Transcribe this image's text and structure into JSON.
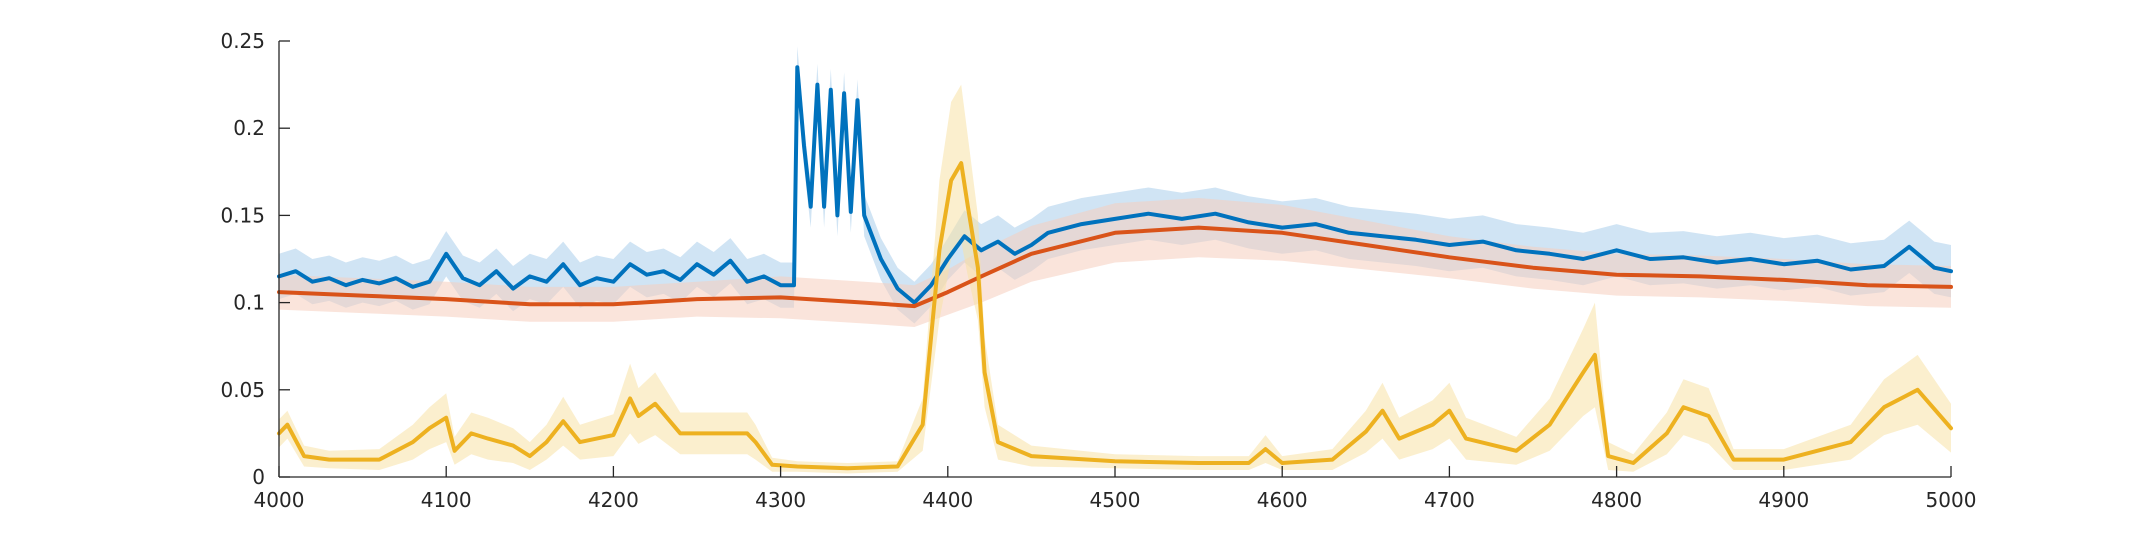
{
  "chart_data": {
    "type": "line",
    "title": "",
    "xlabel": "",
    "ylabel": "",
    "xlim": [
      4000,
      5000
    ],
    "ylim": [
      0,
      0.25
    ],
    "xticks": [
      4000,
      4100,
      4200,
      4300,
      4400,
      4500,
      4600,
      4700,
      4800,
      4900,
      5000
    ],
    "xtick_labels": [
      "4000",
      "4100",
      "4200",
      "4300",
      "4400",
      "4500",
      "4600",
      "4700",
      "4800",
      "4900",
      "5000"
    ],
    "yticks": [
      0,
      0.05,
      0.1,
      0.15,
      0.2,
      0.25
    ],
    "ytick_labels": [
      "0",
      "0.05",
      "0.1",
      "0.15",
      "0.2",
      "0.25"
    ],
    "grid": false,
    "legend": "none",
    "series": [
      {
        "color": "#0072BD",
        "band_color": "#A9CDEB",
        "x": [
          4000,
          4010,
          4020,
          4030,
          4040,
          4050,
          4060,
          4070,
          4080,
          4090,
          4100,
          4110,
          4120,
          4130,
          4140,
          4150,
          4160,
          4170,
          4180,
          4190,
          4200,
          4210,
          4220,
          4230,
          4240,
          4250,
          4260,
          4270,
          4280,
          4290,
          4300,
          4308,
          4310,
          4314,
          4318,
          4322,
          4326,
          4330,
          4334,
          4338,
          4342,
          4346,
          4350,
          4360,
          4370,
          4380,
          4390,
          4400,
          4410,
          4420,
          4430,
          4440,
          4450,
          4460,
          4480,
          4500,
          4520,
          4540,
          4560,
          4580,
          4600,
          4620,
          4640,
          4660,
          4680,
          4700,
          4720,
          4740,
          4760,
          4780,
          4800,
          4820,
          4840,
          4860,
          4880,
          4900,
          4920,
          4940,
          4960,
          4975,
          4990,
          5000
        ],
        "y": [
          0.115,
          0.118,
          0.112,
          0.114,
          0.11,
          0.113,
          0.111,
          0.114,
          0.109,
          0.112,
          0.128,
          0.114,
          0.11,
          0.118,
          0.108,
          0.115,
          0.112,
          0.122,
          0.11,
          0.114,
          0.112,
          0.122,
          0.116,
          0.118,
          0.113,
          0.122,
          0.116,
          0.124,
          0.112,
          0.115,
          0.11,
          0.11,
          0.235,
          0.19,
          0.155,
          0.225,
          0.155,
          0.222,
          0.15,
          0.22,
          0.152,
          0.216,
          0.15,
          0.125,
          0.108,
          0.1,
          0.11,
          0.125,
          0.138,
          0.13,
          0.135,
          0.128,
          0.133,
          0.14,
          0.145,
          0.148,
          0.151,
          0.148,
          0.151,
          0.146,
          0.143,
          0.145,
          0.14,
          0.138,
          0.136,
          0.133,
          0.135,
          0.13,
          0.128,
          0.125,
          0.13,
          0.125,
          0.126,
          0.123,
          0.125,
          0.122,
          0.124,
          0.119,
          0.121,
          0.132,
          0.12,
          0.118
        ],
        "band": [
          0.013,
          0.013,
          0.013,
          0.013,
          0.013,
          0.013,
          0.013,
          0.013,
          0.013,
          0.013,
          0.013,
          0.013,
          0.013,
          0.013,
          0.013,
          0.013,
          0.013,
          0.013,
          0.013,
          0.013,
          0.013,
          0.013,
          0.013,
          0.013,
          0.013,
          0.013,
          0.013,
          0.013,
          0.013,
          0.013,
          0.013,
          0.013,
          0.012,
          0.012,
          0.012,
          0.012,
          0.012,
          0.012,
          0.012,
          0.012,
          0.012,
          0.012,
          0.012,
          0.012,
          0.012,
          0.012,
          0.012,
          0.012,
          0.015,
          0.015,
          0.015,
          0.015,
          0.015,
          0.015,
          0.015,
          0.015,
          0.015,
          0.015,
          0.015,
          0.015,
          0.015,
          0.015,
          0.015,
          0.015,
          0.015,
          0.015,
          0.015,
          0.015,
          0.015,
          0.015,
          0.015,
          0.015,
          0.015,
          0.015,
          0.015,
          0.015,
          0.015,
          0.015,
          0.015,
          0.015,
          0.015,
          0.015
        ]
      },
      {
        "color": "#D95319",
        "band_color": "#F6CDBD",
        "x": [
          4000,
          4050,
          4100,
          4150,
          4200,
          4250,
          4300,
          4350,
          4380,
          4400,
          4420,
          4450,
          4500,
          4550,
          4600,
          4650,
          4700,
          4750,
          4800,
          4850,
          4900,
          4950,
          5000
        ],
        "y": [
          0.106,
          0.104,
          0.102,
          0.099,
          0.099,
          0.102,
          0.103,
          0.1,
          0.098,
          0.106,
          0.115,
          0.128,
          0.14,
          0.143,
          0.14,
          0.133,
          0.126,
          0.12,
          0.116,
          0.115,
          0.113,
          0.11,
          0.109
        ],
        "band": [
          0.01,
          0.01,
          0.01,
          0.01,
          0.01,
          0.01,
          0.012,
          0.012,
          0.012,
          0.013,
          0.015,
          0.016,
          0.017,
          0.017,
          0.016,
          0.014,
          0.012,
          0.012,
          0.012,
          0.012,
          0.012,
          0.012,
          0.012
        ]
      },
      {
        "color": "#EDB120",
        "band_color": "#F8E1A6",
        "x": [
          4000,
          4005,
          4015,
          4030,
          4060,
          4080,
          4090,
          4100,
          4105,
          4115,
          4125,
          4140,
          4150,
          4160,
          4170,
          4180,
          4200,
          4210,
          4215,
          4225,
          4240,
          4260,
          4280,
          4285,
          4295,
          4310,
          4340,
          4370,
          4385,
          4395,
          4402,
          4408,
          4412,
          4418,
          4422,
          4430,
          4450,
          4500,
          4550,
          4580,
          4590,
          4600,
          4630,
          4650,
          4660,
          4670,
          4690,
          4700,
          4710,
          4740,
          4760,
          4780,
          4787,
          4795,
          4810,
          4830,
          4840,
          4855,
          4870,
          4900,
          4940,
          4960,
          4980,
          5000
        ],
        "y": [
          0.025,
          0.03,
          0.012,
          0.01,
          0.01,
          0.02,
          0.028,
          0.034,
          0.015,
          0.025,
          0.022,
          0.018,
          0.012,
          0.02,
          0.032,
          0.02,
          0.024,
          0.045,
          0.035,
          0.042,
          0.025,
          0.025,
          0.025,
          0.02,
          0.007,
          0.006,
          0.005,
          0.006,
          0.03,
          0.13,
          0.17,
          0.18,
          0.155,
          0.12,
          0.06,
          0.02,
          0.012,
          0.009,
          0.008,
          0.008,
          0.016,
          0.008,
          0.01,
          0.026,
          0.038,
          0.022,
          0.03,
          0.038,
          0.022,
          0.015,
          0.03,
          0.06,
          0.07,
          0.012,
          0.008,
          0.025,
          0.04,
          0.035,
          0.01,
          0.01,
          0.02,
          0.04,
          0.05,
          0.028
        ],
        "band": [
          0.008,
          0.008,
          0.006,
          0.005,
          0.006,
          0.01,
          0.012,
          0.014,
          0.008,
          0.012,
          0.012,
          0.01,
          0.008,
          0.01,
          0.014,
          0.01,
          0.012,
          0.02,
          0.016,
          0.018,
          0.012,
          0.012,
          0.012,
          0.01,
          0.004,
          0.003,
          0.003,
          0.003,
          0.015,
          0.04,
          0.045,
          0.045,
          0.04,
          0.03,
          0.02,
          0.01,
          0.006,
          0.004,
          0.004,
          0.004,
          0.008,
          0.004,
          0.006,
          0.012,
          0.016,
          0.012,
          0.014,
          0.016,
          0.012,
          0.008,
          0.015,
          0.025,
          0.03,
          0.008,
          0.005,
          0.012,
          0.016,
          0.016,
          0.006,
          0.006,
          0.01,
          0.016,
          0.02,
          0.014
        ]
      }
    ]
  }
}
